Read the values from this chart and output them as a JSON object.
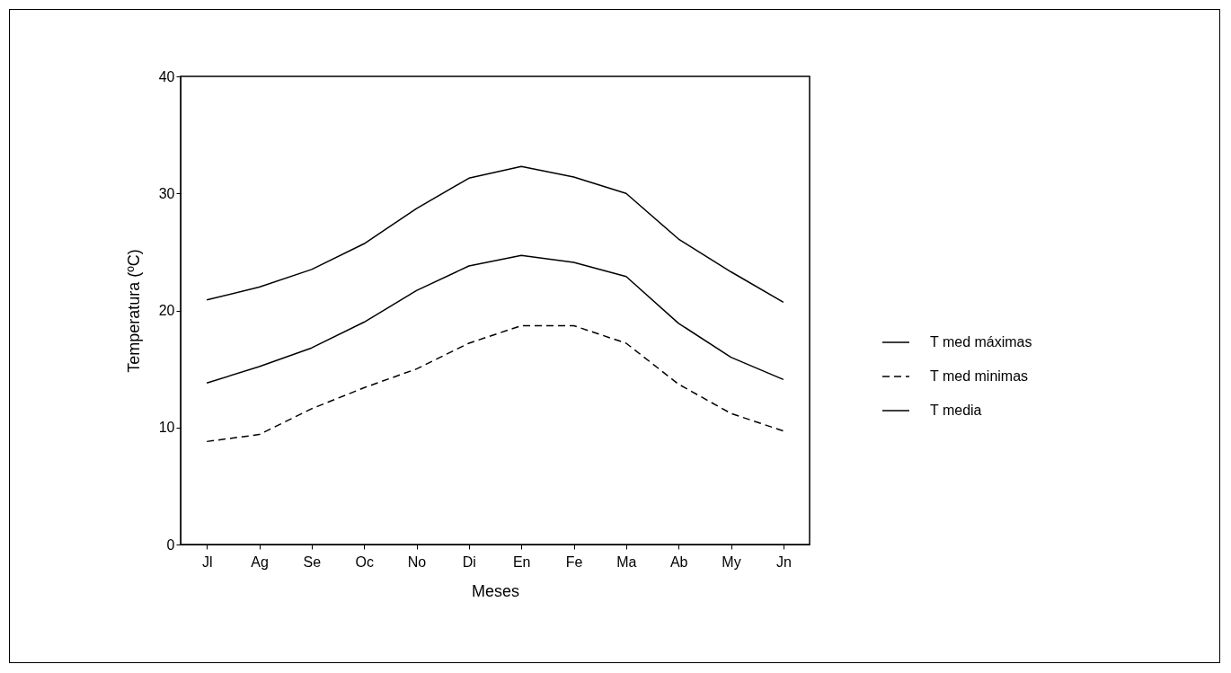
{
  "chart_data": {
    "type": "line",
    "xlabel": "Meses",
    "ylabel": "Temperatura  (ºC)",
    "categories": [
      "Jl",
      "Ag",
      "Se",
      "Oc",
      "No",
      "Di",
      "En",
      "Fe",
      "Ma",
      "Ab",
      "My",
      "Jn"
    ],
    "series": [
      {
        "name": "T med máximas",
        "color": "#000000",
        "line_style": "solid",
        "values": [
          20.9,
          22.0,
          23.5,
          25.7,
          28.7,
          31.3,
          32.3,
          31.4,
          30.0,
          26.1,
          23.3,
          20.7
        ]
      },
      {
        "name": "T med minimas",
        "color": "#000000",
        "line_style": "dashed",
        "values": [
          8.8,
          9.4,
          11.6,
          13.4,
          15.0,
          17.2,
          18.7,
          18.7,
          17.2,
          13.7,
          11.2,
          9.7
        ]
      },
      {
        "name": "T media",
        "color": "#000000",
        "line_style": "solid",
        "values": [
          13.8,
          15.2,
          16.8,
          19.0,
          21.7,
          23.8,
          24.7,
          24.1,
          22.9,
          18.9,
          16.0,
          14.1
        ]
      }
    ],
    "ylim": [
      0,
      40
    ],
    "yticks": [
      0,
      10,
      20,
      30,
      40
    ],
    "grid": false,
    "legend": "right"
  }
}
